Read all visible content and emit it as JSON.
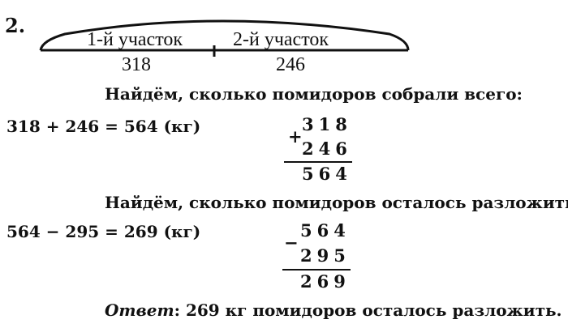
{
  "problem_number": "2.",
  "diagram": {
    "part1_label": "1-й участок",
    "part2_label": "2-й участок",
    "part1_value": "318",
    "part2_value": "246"
  },
  "step1": {
    "text": "Найдём, сколько помидоров собрали всего:",
    "equation": "318 + 246 = 564 (кг)",
    "column": {
      "top": "318",
      "op": "+",
      "bottom": "246",
      "result": "564"
    }
  },
  "step2": {
    "text": "Найдём, сколько помидоров осталось разложить:",
    "equation": "564 − 295 = 269 (кг)",
    "column": {
      "top": "564",
      "op": "−",
      "bottom": "295",
      "result": "269"
    }
  },
  "answer": {
    "label": "Ответ",
    "text": ": 269 кг помидоров осталось разложить."
  }
}
